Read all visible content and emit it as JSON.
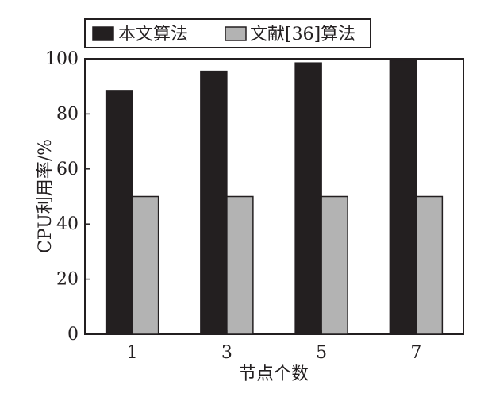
{
  "chart_data": {
    "type": "bar",
    "categories": [
      "1",
      "3",
      "5",
      "7"
    ],
    "series": [
      {
        "name": "本文算法",
        "values": [
          88.5,
          95.5,
          98.5,
          99.5
        ],
        "color": "#231f20"
      },
      {
        "name": "文献[36]算法",
        "values": [
          50,
          50,
          50,
          50
        ],
        "color": "#b3b3b3"
      }
    ],
    "xlabel": "节点个数",
    "ylabel": "CPU利用率/%",
    "ylim": [
      0,
      100
    ],
    "yticks": [
      "0",
      "20",
      "40",
      "60",
      "80",
      "100"
    ],
    "grid": false,
    "legend_position": "top"
  }
}
